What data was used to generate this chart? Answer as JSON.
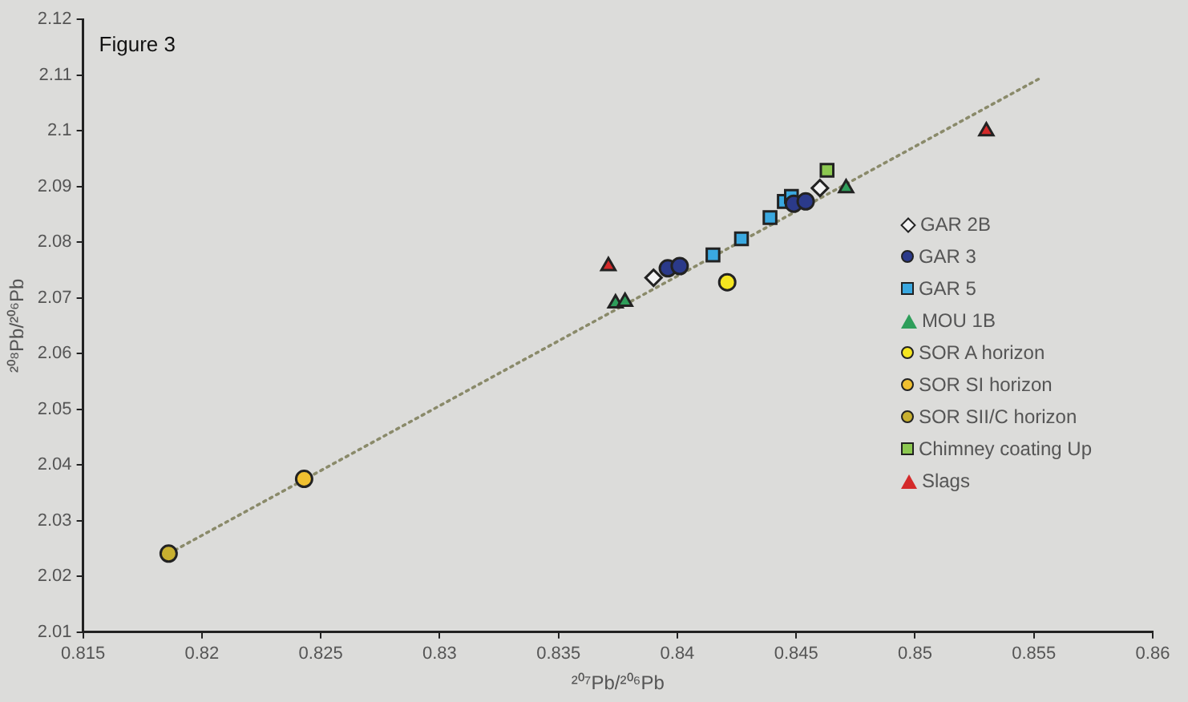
{
  "chart_data": {
    "type": "scatter",
    "annotations": [
      "Figure 3"
    ],
    "xlabel": "²⁰⁷Pb/²⁰⁶Pb",
    "ylabel": "²⁰⁸Pb/²⁰⁶Pb",
    "xlim": [
      0.815,
      0.86
    ],
    "xticks": [
      0.815,
      0.82,
      0.825,
      0.83,
      0.835,
      0.84,
      0.845,
      0.85,
      0.855,
      0.86
    ],
    "ylim": [
      2.01,
      2.12
    ],
    "yticks": [
      2.01,
      2.02,
      2.03,
      2.04,
      2.05,
      2.06,
      2.07,
      2.08,
      2.09,
      2.1,
      2.11,
      2.12
    ],
    "legend": "right",
    "grid": false,
    "series": [
      {
        "type": "line",
        "color": "#8a8a6a",
        "line_style": "dotted",
        "marker": "none",
        "x": [
          0.8186,
          0.8553
        ],
        "values": [
          2.0241,
          2.1095
        ]
      },
      {
        "name": "GAR 2B",
        "color": "#f4f4f4",
        "marker": "diamond",
        "x": [
          0.839,
          0.846
        ],
        "values": [
          2.0736,
          2.0897
        ]
      },
      {
        "name": "GAR 3",
        "color": "#2b3a8a",
        "marker": "circle",
        "x": [
          0.8396,
          0.8401,
          0.8449,
          0.8454
        ],
        "values": [
          2.0753,
          2.0757,
          2.0869,
          2.0873
        ]
      },
      {
        "name": "GAR 5",
        "color": "#3aa8e0",
        "marker": "square",
        "x": [
          0.8415,
          0.8427,
          0.8439,
          0.8445,
          0.8448
        ],
        "values": [
          2.0777,
          2.0806,
          2.0844,
          2.0873,
          2.0882
        ]
      },
      {
        "name": "MOU 1B",
        "color": "#2e9e5a",
        "marker": "triangle",
        "x": [
          0.8374,
          0.8378,
          0.8471
        ],
        "values": [
          2.069,
          2.0693,
          2.0897
        ]
      },
      {
        "name": "SOR A horizon",
        "color": "#f5e620",
        "marker": "circle",
        "x": [
          0.8421
        ],
        "values": [
          2.0728
        ]
      },
      {
        "name": "SOR SI horizon",
        "color": "#f0c030",
        "marker": "circle",
        "x": [
          0.8243
        ],
        "values": [
          2.0375
        ]
      },
      {
        "name": "SOR SII/C horizon",
        "color": "#c8b030",
        "marker": "circle",
        "x": [
          0.8186
        ],
        "values": [
          2.0241
        ]
      },
      {
        "name": "Chimney coating Up",
        "color": "#8cc850",
        "marker": "square",
        "x": [
          0.8463
        ],
        "values": [
          2.0929
        ]
      },
      {
        "name": "Slags",
        "color": "#d42a2a",
        "marker": "triangle",
        "x": [
          0.8371,
          0.853
        ],
        "values": [
          2.0757,
          2.0999
        ]
      }
    ]
  }
}
